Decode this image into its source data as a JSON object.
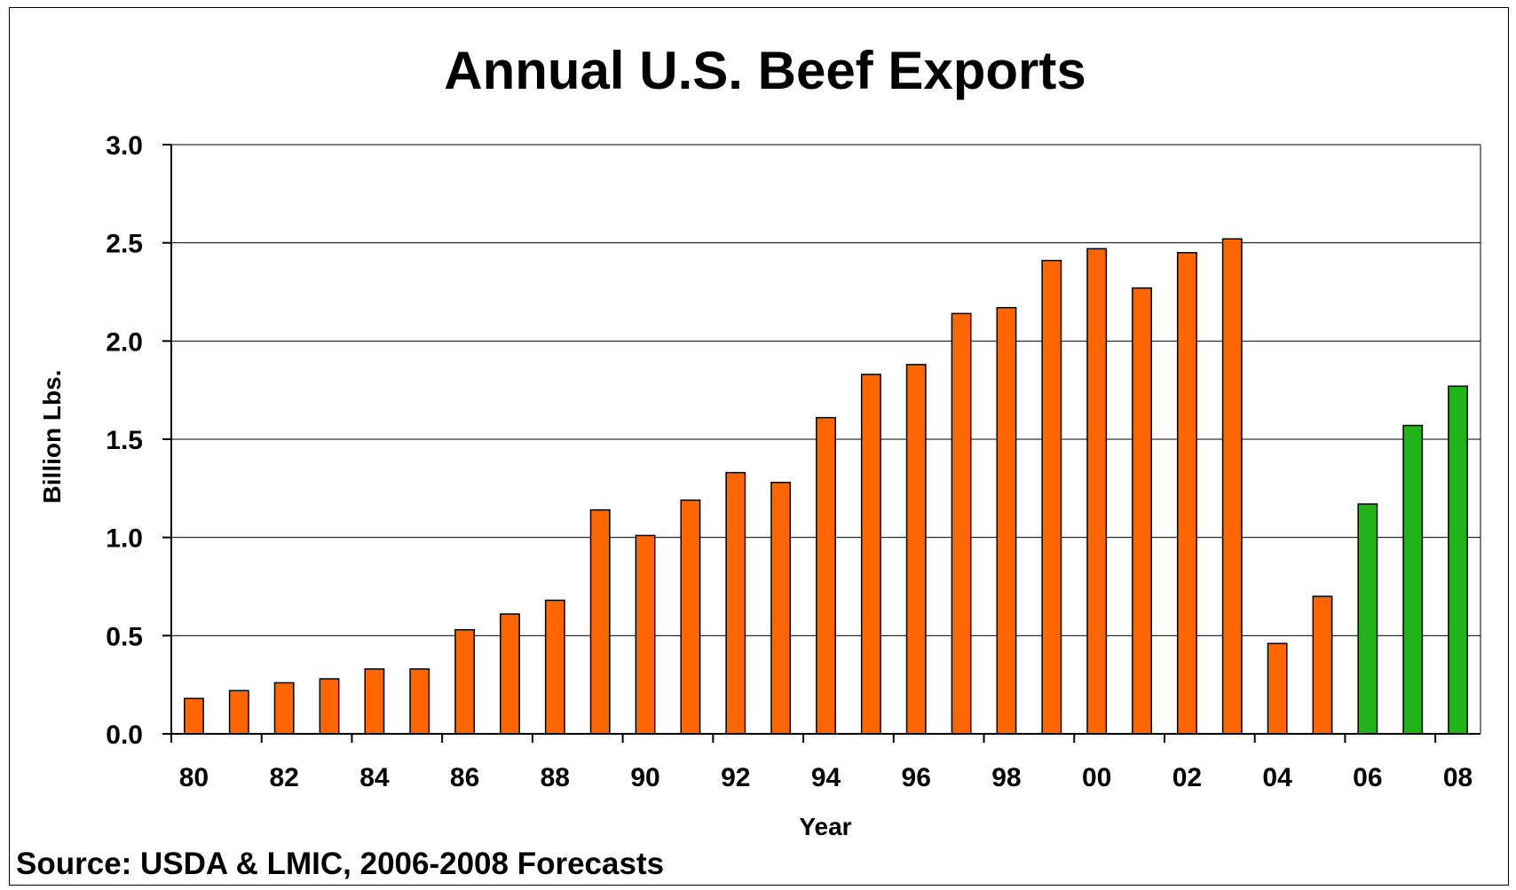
{
  "chart_data": {
    "type": "bar",
    "title": "Annual U.S. Beef Exports",
    "xlabel": "Year",
    "ylabel": "Billion Lbs.",
    "ylim": [
      0,
      3.0
    ],
    "yticks": [
      "0.0",
      "0.5",
      "1.0",
      "1.5",
      "2.0",
      "2.5",
      "3.0"
    ],
    "categories": [
      "80",
      "81",
      "82",
      "83",
      "84",
      "85",
      "86",
      "87",
      "88",
      "89",
      "90",
      "91",
      "92",
      "93",
      "94",
      "95",
      "96",
      "97",
      "98",
      "99",
      "00",
      "01",
      "02",
      "03",
      "04",
      "05",
      "06",
      "07",
      "08"
    ],
    "category_labels_shown": [
      "80",
      "82",
      "84",
      "86",
      "88",
      "90",
      "92",
      "94",
      "96",
      "98",
      "00",
      "02",
      "04",
      "06",
      "08"
    ],
    "values": [
      0.18,
      0.22,
      0.26,
      0.28,
      0.33,
      0.33,
      0.53,
      0.61,
      0.68,
      1.14,
      1.01,
      1.19,
      1.33,
      1.28,
      1.61,
      1.83,
      1.88,
      2.14,
      2.17,
      2.41,
      2.47,
      2.27,
      2.45,
      2.52,
      0.46,
      0.7,
      1.17,
      1.57,
      1.77
    ],
    "forecast_from_index": 26,
    "colors": {
      "actual": "#FF6600",
      "forecast": "#22B319",
      "grid": "#000000"
    },
    "grid": true,
    "source_note": "Source: USDA & LMIC, 2006-2008 Forecasts"
  }
}
